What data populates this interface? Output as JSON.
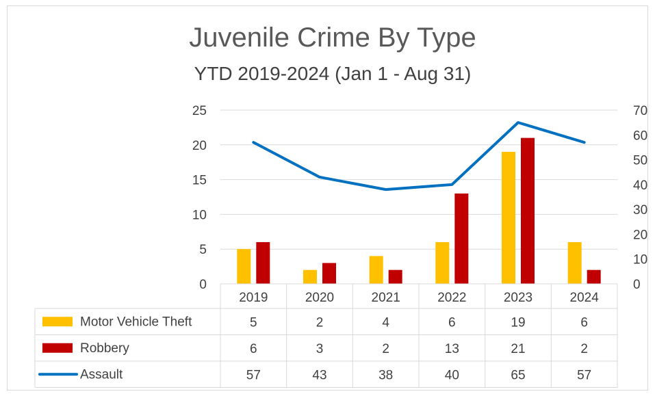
{
  "chart_data": {
    "type": "bar",
    "title": "Juvenile Crime By Type",
    "subtitle": "YTD 2019-2024 (Jan 1 - Aug 31)",
    "categories": [
      "2019",
      "2020",
      "2021",
      "2022",
      "2023",
      "2024"
    ],
    "series": [
      {
        "name": "Motor Vehicle Theft",
        "type": "bar",
        "axis": "left",
        "color": "#FFC000",
        "values": [
          5,
          2,
          4,
          6,
          19,
          6
        ]
      },
      {
        "name": "Robbery",
        "type": "bar",
        "axis": "left",
        "color": "#C00000",
        "values": [
          6,
          3,
          2,
          13,
          21,
          2
        ]
      },
      {
        "name": "Assault",
        "type": "line",
        "axis": "right",
        "color": "#0070C0",
        "values": [
          57,
          43,
          38,
          40,
          65,
          57
        ]
      }
    ],
    "y_left": {
      "min": 0,
      "max": 25,
      "ticks": [
        "0",
        "5",
        "10",
        "15",
        "20",
        "25"
      ]
    },
    "y_right": {
      "min": 0,
      "max": 70,
      "ticks": [
        "0",
        "10",
        "20",
        "30",
        "40",
        "50",
        "60",
        "70"
      ]
    },
    "grid": true,
    "legend": "data table below chart"
  }
}
